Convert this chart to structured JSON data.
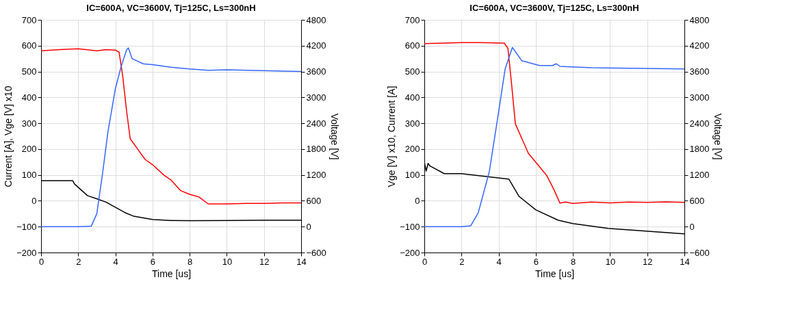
{
  "chart_data": [
    {
      "type": "line",
      "title": "IC=600A, VC=3600V, Tj=125C, Ls=300nH",
      "xlabel": "Time [us]",
      "ylabel": "Current [A], Vge [V] x10",
      "y2label": "Voltage [V]",
      "xlim": [
        0,
        14
      ],
      "xticks": [
        0,
        2,
        4,
        6,
        8,
        10,
        12,
        14
      ],
      "ylim": [
        -200,
        700
      ],
      "yticks": [
        -200,
        -100,
        0,
        100,
        200,
        300,
        400,
        500,
        600,
        700
      ],
      "y2lim": [
        -600,
        4800
      ],
      "y2ticks": [
        -600,
        0,
        600,
        1200,
        1800,
        2400,
        3000,
        3600,
        4200,
        4800
      ],
      "grid": true,
      "legend": false,
      "line_style": "solid",
      "series": [
        {
          "color": "#ff0000",
          "x": [
            0,
            1,
            2,
            3,
            3.5,
            4,
            4.2,
            4.4,
            4.6,
            4.8,
            5.2,
            5.6,
            6,
            6.6,
            7,
            7.5,
            8,
            8.5,
            9,
            10,
            11,
            12,
            13,
            14
          ],
          "values": [
            580,
            585,
            588,
            580,
            585,
            583,
            575,
            480,
            350,
            240,
            200,
            160,
            140,
            100,
            80,
            40,
            25,
            15,
            -12,
            -12,
            -10,
            -10,
            -8,
            -8
          ]
        },
        {
          "color": "#000000",
          "x": [
            0,
            1.7,
            1.8,
            2.5,
            3,
            3.5,
            4,
            4.5,
            5,
            6,
            7,
            8,
            10,
            12,
            14
          ],
          "values": [
            78,
            78,
            65,
            20,
            8,
            -5,
            -25,
            -45,
            -60,
            -72,
            -76,
            -77,
            -76,
            -75,
            -75
          ]
        },
        {
          "color": "#3366ff",
          "axis": "y2",
          "x": [
            0,
            2,
            2.7,
            3,
            3.3,
            3.6,
            4,
            4.3,
            4.6,
            4.7,
            4.9,
            5.5,
            6,
            7,
            8,
            9,
            10,
            12,
            14
          ],
          "values": [
            0,
            0,
            10,
            300,
            1200,
            2200,
            3200,
            3700,
            4100,
            4150,
            3900,
            3780,
            3760,
            3700,
            3660,
            3630,
            3640,
            3620,
            3600
          ]
        }
      ]
    },
    {
      "type": "line",
      "title": "IC=600A, VC=3600V, Tj=125C, Ls=300nH",
      "xlabel": "Time [us]",
      "ylabel": "Vge [V] x10, Current [A]",
      "y2label": "Voltage [V]",
      "xlim": [
        0,
        14
      ],
      "xticks": [
        0,
        2,
        4,
        6,
        8,
        10,
        12,
        14
      ],
      "ylim": [
        -200,
        700
      ],
      "yticks": [
        -200,
        -100,
        0,
        100,
        200,
        300,
        400,
        500,
        600,
        700
      ],
      "y2lim": [
        -600,
        4800
      ],
      "y2ticks": [
        -600,
        0,
        600,
        1200,
        1800,
        2400,
        3000,
        3600,
        4200,
        4800
      ],
      "grid": true,
      "legend": false,
      "line_style": "solid",
      "series": [
        {
          "color": "#ff0000",
          "x": [
            0,
            2,
            3,
            4.3,
            4.5,
            4.7,
            4.9,
            5.6,
            6.6,
            7.0,
            7.3,
            7.6,
            8,
            9,
            10,
            11,
            12,
            13,
            14
          ],
          "values": [
            608,
            612,
            612,
            610,
            590,
            450,
            298,
            184,
            97,
            40,
            -9,
            -5,
            -10,
            -5,
            -8,
            -5,
            -6,
            -4,
            -6
          ]
        },
        {
          "color": "#000000",
          "x": [
            0,
            0.1,
            0.2,
            0.3,
            1.07,
            2,
            4.55,
            5.1,
            6.0,
            7.2,
            8.0,
            9.9,
            14
          ],
          "values": [
            150,
            115,
            145,
            135,
            105,
            105,
            84,
            17,
            -35,
            -75,
            -88,
            -107,
            -128
          ]
        },
        {
          "color": "#3366ff",
          "axis": "y2",
          "x": [
            0,
            2,
            2.5,
            2.9,
            3.5,
            3.98,
            4.35,
            4.74,
            5.25,
            6.2,
            6.9,
            7.1,
            7.3,
            9,
            14
          ],
          "values": [
            0,
            0,
            20,
            320,
            1280,
            2610,
            3660,
            4160,
            3850,
            3740,
            3740,
            3780,
            3720,
            3690,
            3660
          ]
        }
      ]
    }
  ]
}
